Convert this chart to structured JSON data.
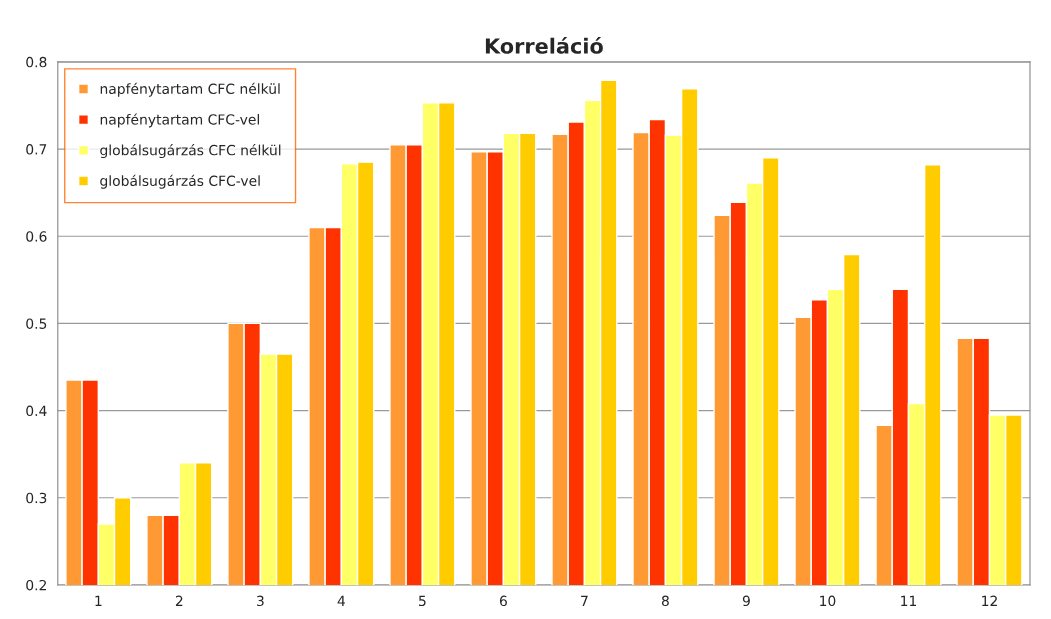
{
  "chart_data": {
    "type": "bar",
    "title": "Korreláció",
    "categories": [
      "1",
      "2",
      "3",
      "4",
      "5",
      "6",
      "7",
      "8",
      "9",
      "10",
      "11",
      "12"
    ],
    "series": [
      {
        "name": "napfénytartam CFC nélkül",
        "color": "#ff9933",
        "values": [
          0.435,
          0.28,
          0.5,
          0.61,
          0.705,
          0.697,
          0.717,
          0.719,
          0.624,
          0.507,
          0.383,
          0.483
        ]
      },
      {
        "name": "napfénytartam CFC-vel",
        "color": "#ff3300",
        "values": [
          0.435,
          0.28,
          0.5,
          0.61,
          0.705,
          0.697,
          0.731,
          0.734,
          0.639,
          0.527,
          0.539,
          0.483
        ]
      },
      {
        "name": "globálsugárzás CFC nélkül",
        "color": "#ffff66",
        "values": [
          0.27,
          0.34,
          0.465,
          0.683,
          0.753,
          0.718,
          0.756,
          0.716,
          0.661,
          0.539,
          0.408,
          0.395
        ]
      },
      {
        "name": "globálsugárzás CFC-vel",
        "color": "#ffcc00",
        "values": [
          0.3,
          0.34,
          0.465,
          0.685,
          0.753,
          0.718,
          0.779,
          0.769,
          0.69,
          0.579,
          0.682,
          0.395
        ]
      }
    ],
    "ylim": [
      0.2,
      0.8
    ],
    "yticks": [
      0.2,
      0.3,
      0.4,
      0.5,
      0.6,
      0.7,
      0.8
    ],
    "grid": "y",
    "legend": "top left"
  }
}
